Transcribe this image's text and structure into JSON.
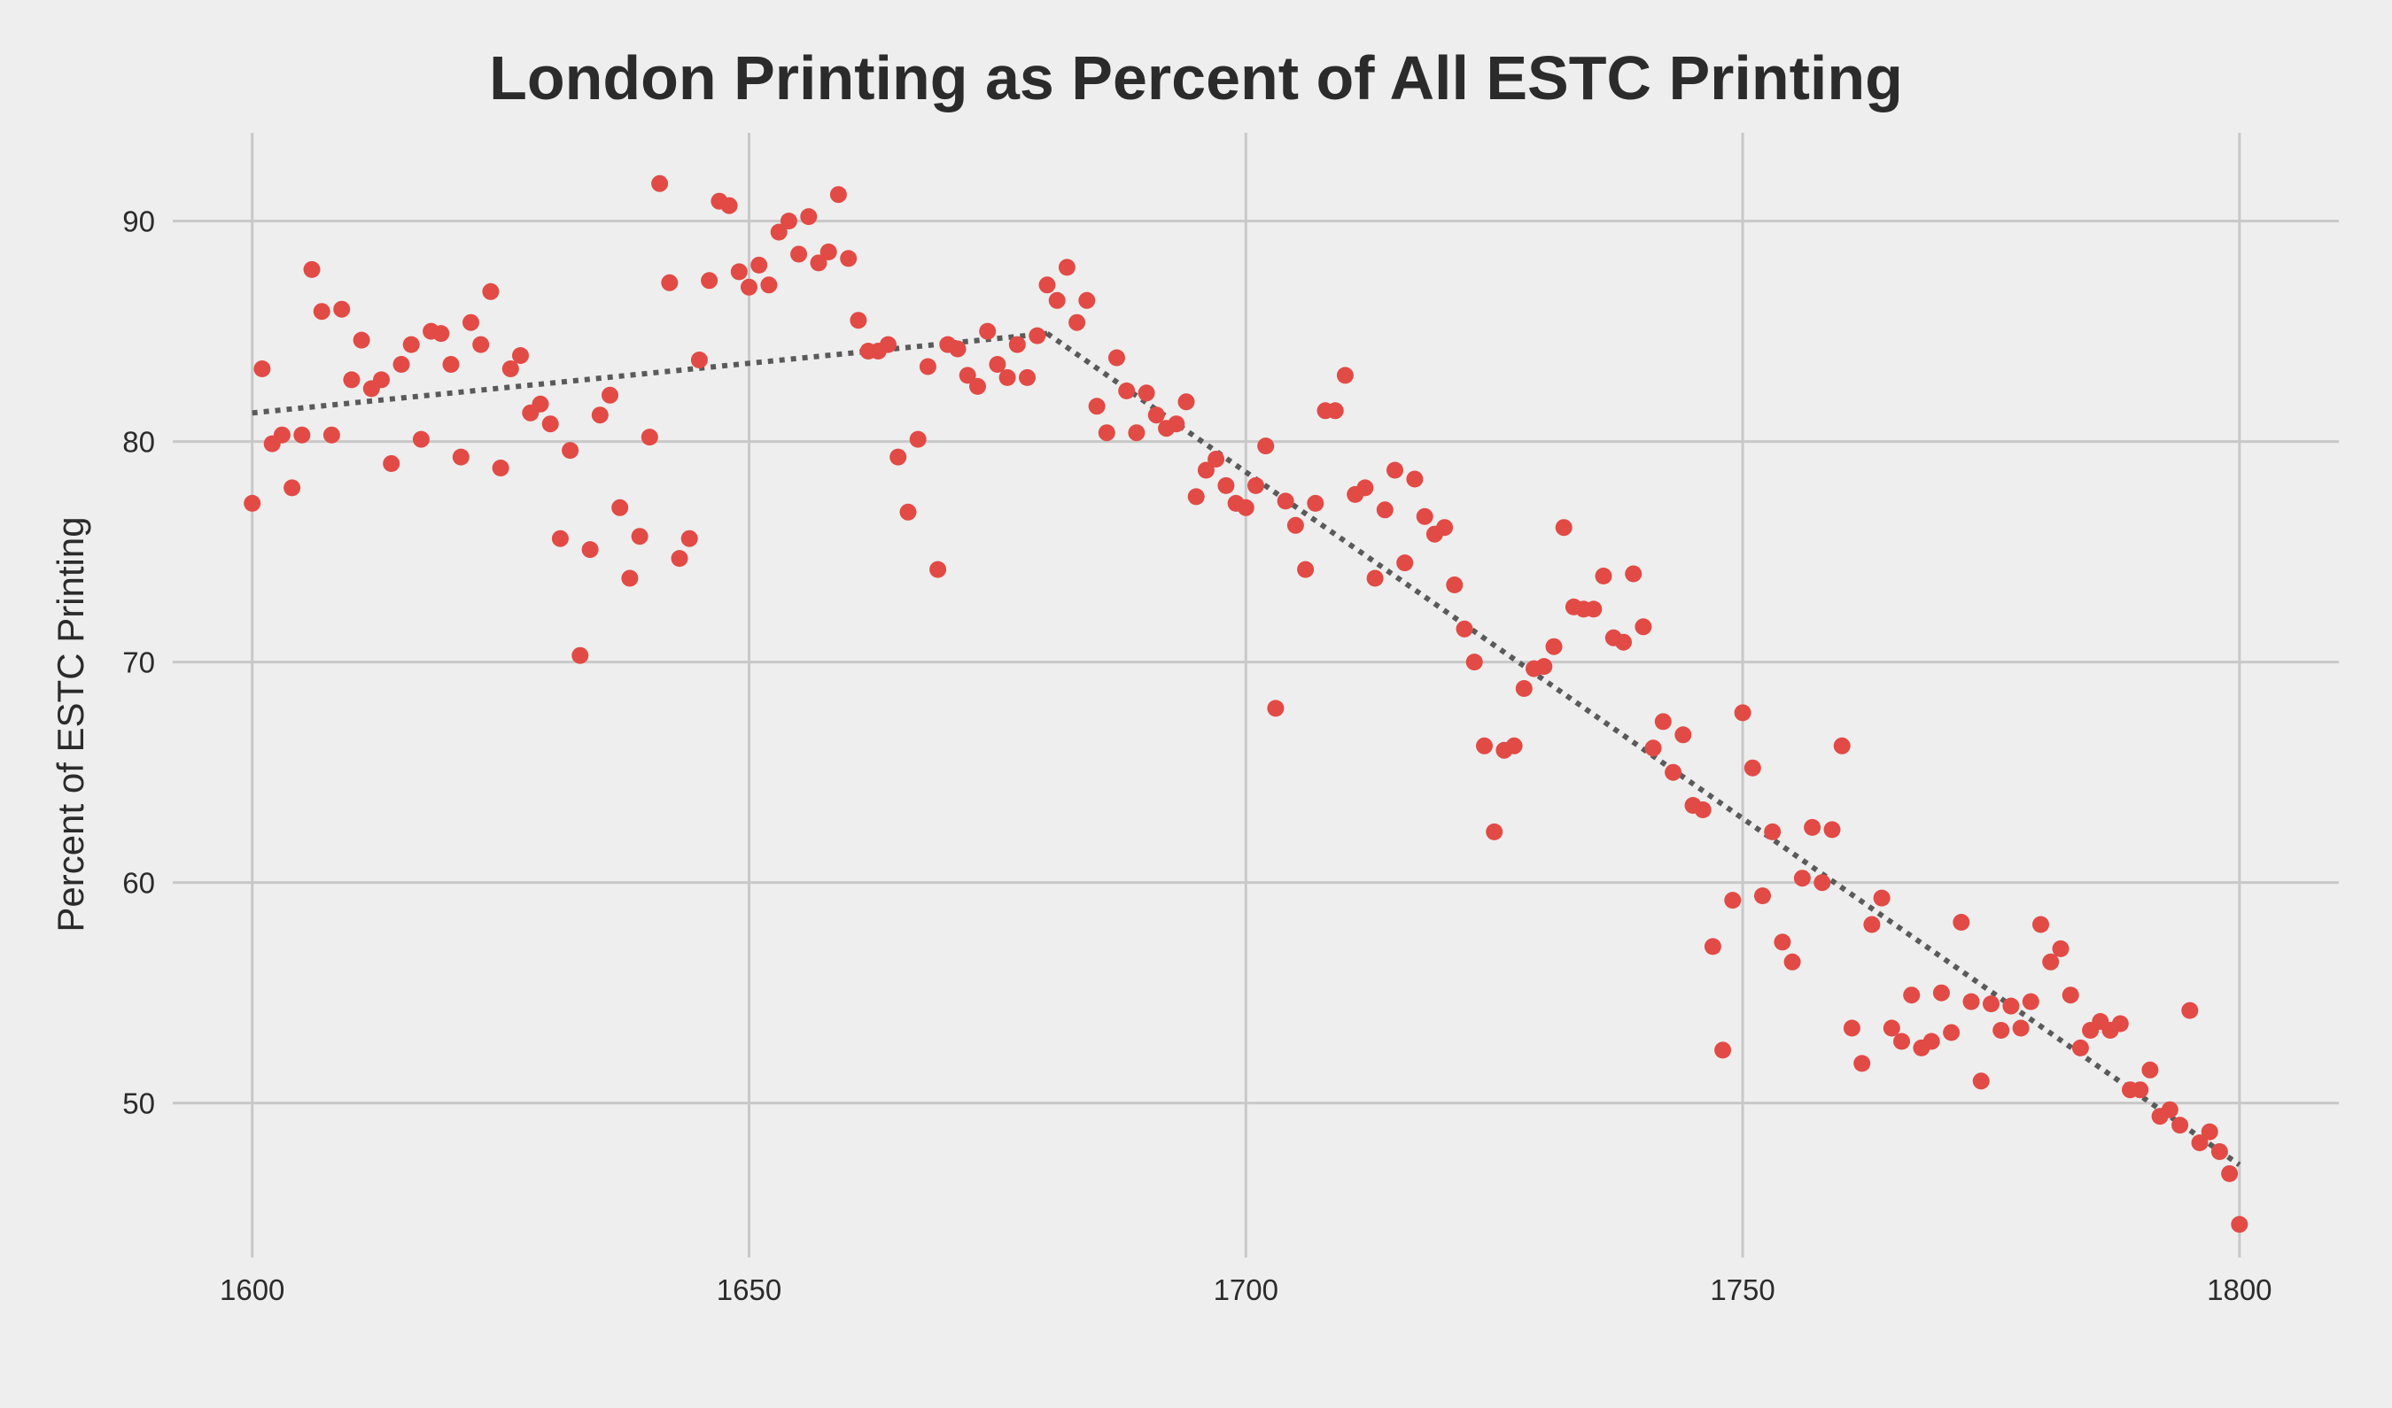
{
  "chart_data": {
    "type": "scatter",
    "title": "London Printing as Percent of All ESTC Printing",
    "xlabel": "",
    "ylabel": "Percent of ESTC Printing",
    "xlim": [
      1592,
      1810
    ],
    "ylim": [
      43,
      94
    ],
    "x_ticks": [
      1600,
      1650,
      1700,
      1750,
      1800
    ],
    "y_ticks": [
      50,
      60,
      70,
      80,
      90
    ],
    "grid": true,
    "colors": {
      "points": "#e24a45",
      "trend": "#5a5a5a",
      "background": "#eeeeee",
      "grid": "#c8c8c8"
    },
    "series": [
      {
        "x": [
          1600,
          1601,
          1602,
          1603,
          1604,
          1605,
          1606,
          1607,
          1608,
          1609,
          1610,
          1611,
          1612,
          1613,
          1614,
          1615,
          1616,
          1617,
          1618,
          1619,
          1620,
          1621,
          1622,
          1623,
          1624,
          1625,
          1626,
          1627,
          1628,
          1629,
          1630,
          1631,
          1632,
          1633,
          1634,
          1635,
          1636,
          1637,
          1638,
          1639,
          1640,
          1641,
          1642,
          1643,
          1644,
          1645,
          1646,
          1647,
          1648,
          1649,
          1650,
          1651,
          1652,
          1653,
          1654,
          1655,
          1656,
          1657,
          1658,
          1659,
          1660,
          1661,
          1662,
          1663,
          1664,
          1665,
          1666,
          1667,
          1668,
          1669,
          1670,
          1671,
          1672,
          1673,
          1674,
          1675,
          1676,
          1677,
          1678,
          1679,
          1680,
          1681,
          1682,
          1683,
          1684,
          1685,
          1686,
          1687,
          1688,
          1689,
          1690,
          1691,
          1692,
          1693,
          1694,
          1695,
          1696,
          1697,
          1698,
          1699,
          1700,
          1701,
          1702,
          1703,
          1704,
          1705,
          1706,
          1707,
          1708,
          1709,
          1710,
          1711,
          1712,
          1713,
          1714,
          1715,
          1716,
          1717,
          1718,
          1719,
          1720,
          1721,
          1722,
          1723,
          1724,
          1725,
          1726,
          1727,
          1728,
          1729,
          1730,
          1731,
          1732,
          1733,
          1734,
          1735,
          1736,
          1737,
          1738,
          1739,
          1740,
          1741,
          1742,
          1743,
          1744,
          1745,
          1746,
          1747,
          1748,
          1749,
          1750,
          1751,
          1752,
          1753,
          1754,
          1755,
          1756,
          1757,
          1758,
          1759,
          1760,
          1761,
          1762,
          1763,
          1764,
          1765,
          1766,
          1767,
          1768,
          1769,
          1770,
          1771,
          1772,
          1773,
          1774,
          1775,
          1776,
          1777,
          1778,
          1779,
          1780,
          1781,
          1782,
          1783,
          1784,
          1785,
          1786,
          1787,
          1788,
          1789,
          1790,
          1791,
          1792,
          1793,
          1794,
          1795,
          1796,
          1797,
          1798,
          1799,
          1800
        ],
        "y": [
          77.2,
          83.3,
          79.9,
          80.3,
          77.9,
          80.3,
          87.8,
          85.9,
          80.3,
          86.0,
          82.8,
          84.6,
          82.4,
          82.8,
          79.0,
          83.5,
          84.4,
          80.1,
          85.0,
          84.9,
          83.5,
          79.3,
          85.4,
          84.4,
          86.8,
          78.8,
          83.3,
          83.9,
          81.3,
          81.7,
          80.8,
          75.6,
          79.6,
          70.3,
          75.1,
          81.2,
          82.1,
          77.0,
          73.8,
          75.7,
          80.2,
          91.7,
          87.2,
          74.7,
          75.6,
          83.7,
          87.3,
          90.9,
          90.7,
          87.7,
          87.0,
          88.0,
          87.1,
          89.5,
          90.0,
          88.5,
          90.2,
          88.1,
          88.6,
          91.2,
          88.3,
          85.5,
          84.1,
          84.1,
          84.4,
          79.3,
          76.8,
          80.1,
          83.4,
          74.2,
          84.4,
          84.2,
          83.0,
          82.5,
          85.0,
          83.5,
          82.9,
          84.4,
          82.9,
          84.8,
          87.1,
          86.4,
          87.9,
          85.4,
          86.4,
          81.6,
          80.4,
          83.8,
          82.3,
          80.4,
          82.2,
          81.2,
          80.6,
          80.8,
          81.8,
          77.5,
          78.7,
          79.2,
          78.0,
          77.2,
          77.0,
          78.0,
          79.8,
          67.9,
          77.3,
          76.2,
          74.2,
          77.2,
          81.4,
          81.4,
          83.0,
          77.6,
          77.9,
          73.8,
          76.9,
          78.7,
          74.5,
          78.3,
          76.6,
          75.8,
          76.1,
          73.5,
          71.5,
          70.0,
          66.2,
          62.3,
          66.0,
          66.2,
          68.8,
          69.7,
          69.8,
          70.7,
          76.1,
          72.5,
          72.4,
          72.4,
          73.9,
          71.1,
          70.9,
          74.0,
          71.6,
          66.1,
          67.3,
          65.0,
          66.7,
          63.5,
          63.3,
          57.1,
          52.4,
          59.2,
          67.7,
          65.2,
          59.4,
          62.3,
          57.3,
          56.4,
          60.2,
          62.5,
          60.0,
          62.4,
          66.2,
          53.4,
          51.8,
          58.1,
          59.3,
          53.4,
          52.8,
          54.9,
          52.5,
          52.8,
          55.0,
          53.2,
          58.2,
          54.6,
          51.0,
          54.5,
          53.3,
          54.4,
          53.4,
          54.6,
          58.1,
          56.4,
          57.0,
          54.9,
          52.5,
          53.3,
          53.7,
          53.3,
          53.6,
          50.6,
          50.6,
          51.5,
          49.4,
          49.7,
          49.0,
          54.2,
          48.2,
          48.7,
          47.8,
          46.8,
          44.5
        ]
      }
    ],
    "trend_segments": [
      {
        "x": [
          1600,
          1680
        ],
        "y": [
          81.3,
          84.9
        ]
      },
      {
        "x": [
          1680,
          1800
        ],
        "y": [
          84.9,
          47.2
        ]
      }
    ]
  }
}
